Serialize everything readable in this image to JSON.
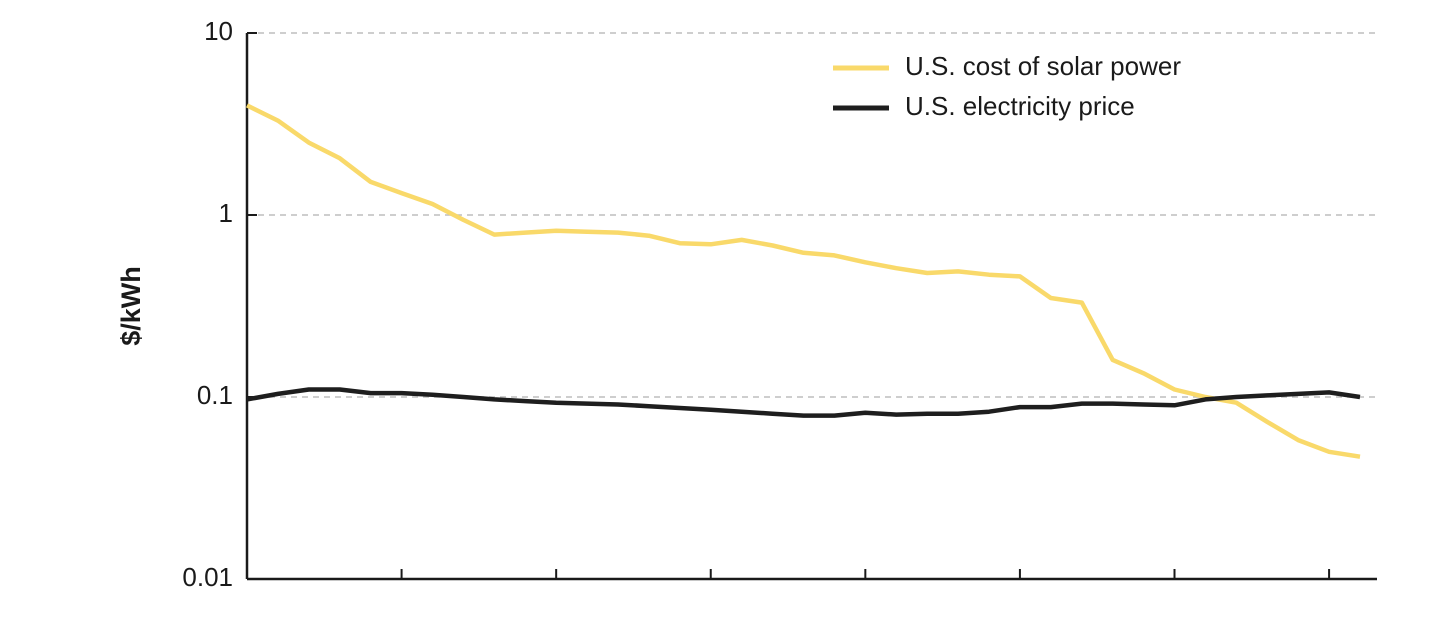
{
  "chart_data": {
    "type": "line",
    "y_label": "$/kWh",
    "categories": [
      null,
      null,
      null,
      null,
      null,
      null,
      null,
      null,
      null,
      null,
      null,
      null,
      null,
      null,
      null,
      null,
      null,
      null,
      null,
      null,
      null,
      null,
      null,
      null,
      null,
      null,
      null,
      null,
      null,
      null,
      null,
      null,
      null,
      null,
      null,
      null,
      null
    ],
    "series": [
      {
        "name": "U.S. cost of solar power",
        "color": "#f9d96a",
        "values": [
          4.0,
          3.3,
          2.5,
          2.05,
          1.52,
          1.32,
          1.15,
          0.94,
          0.78,
          0.8,
          0.82,
          0.81,
          0.8,
          0.77,
          0.7,
          0.69,
          0.73,
          0.68,
          0.62,
          0.6,
          0.55,
          0.51,
          0.48,
          0.49,
          0.47,
          0.46,
          0.35,
          0.33,
          0.16,
          0.135,
          0.11,
          0.1,
          0.093,
          0.073,
          0.058,
          0.05,
          0.047
        ]
      },
      {
        "name": "U.S. electricity price",
        "color": "#1e1e1e",
        "values": [
          0.097,
          0.104,
          0.11,
          0.11,
          0.105,
          0.105,
          0.103,
          0.1,
          0.097,
          0.095,
          0.093,
          0.092,
          0.091,
          0.089,
          0.087,
          0.085,
          0.083,
          0.081,
          0.079,
          0.079,
          0.082,
          0.08,
          0.081,
          0.081,
          0.083,
          0.088,
          0.088,
          0.092,
          0.092,
          0.091,
          0.09,
          0.097,
          0.1,
          0.102,
          0.104,
          0.106,
          0.1
        ]
      }
    ],
    "y_scale": "log",
    "ylim": [
      0.01,
      10
    ],
    "yticks": [
      0.01,
      0.1,
      1,
      10
    ],
    "grid": true,
    "legend_position": "upper right"
  }
}
